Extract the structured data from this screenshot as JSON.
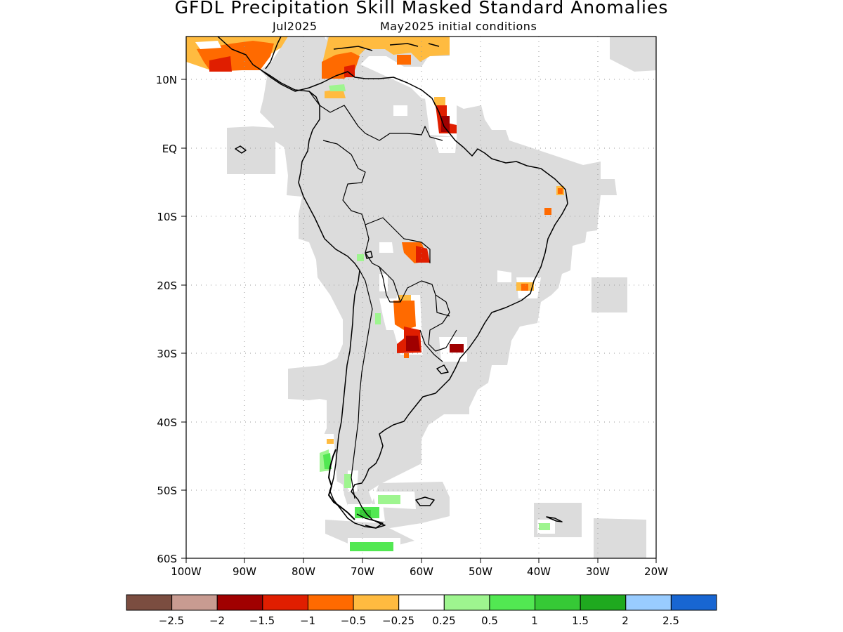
{
  "title": "GFDL Precipitation Skill Masked Standard Anomalies",
  "valid_month": "Jul2025",
  "init_label": "May2025 initial conditions",
  "map": {
    "lon_ticks": [
      "100W",
      "90W",
      "80W",
      "70W",
      "60W",
      "50W",
      "40W",
      "30W",
      "20W"
    ],
    "lat_ticks": [
      "10N",
      "EQ",
      "10S",
      "20S",
      "30S",
      "40S",
      "50S",
      "60S"
    ],
    "colors": {
      "masked": "#dcdcdc",
      "land_outline": "#000000",
      "grid": "#9a9a9a"
    }
  },
  "colorbar": {
    "colors": [
      "#7b4d40",
      "#c89b91",
      "#a00000",
      "#e01e00",
      "#ff6a00",
      "#ffbb40",
      "#ffffff",
      "#9ef58f",
      "#52e852",
      "#36c936",
      "#1fa91f",
      "#99ccff",
      "#1866d2"
    ],
    "labels": [
      "−2.5",
      "−2",
      "−1.5",
      "−1",
      "−0.5",
      "−0.25",
      "0.25",
      "0.5",
      "1",
      "1.5",
      "2",
      "2.5"
    ]
  }
}
